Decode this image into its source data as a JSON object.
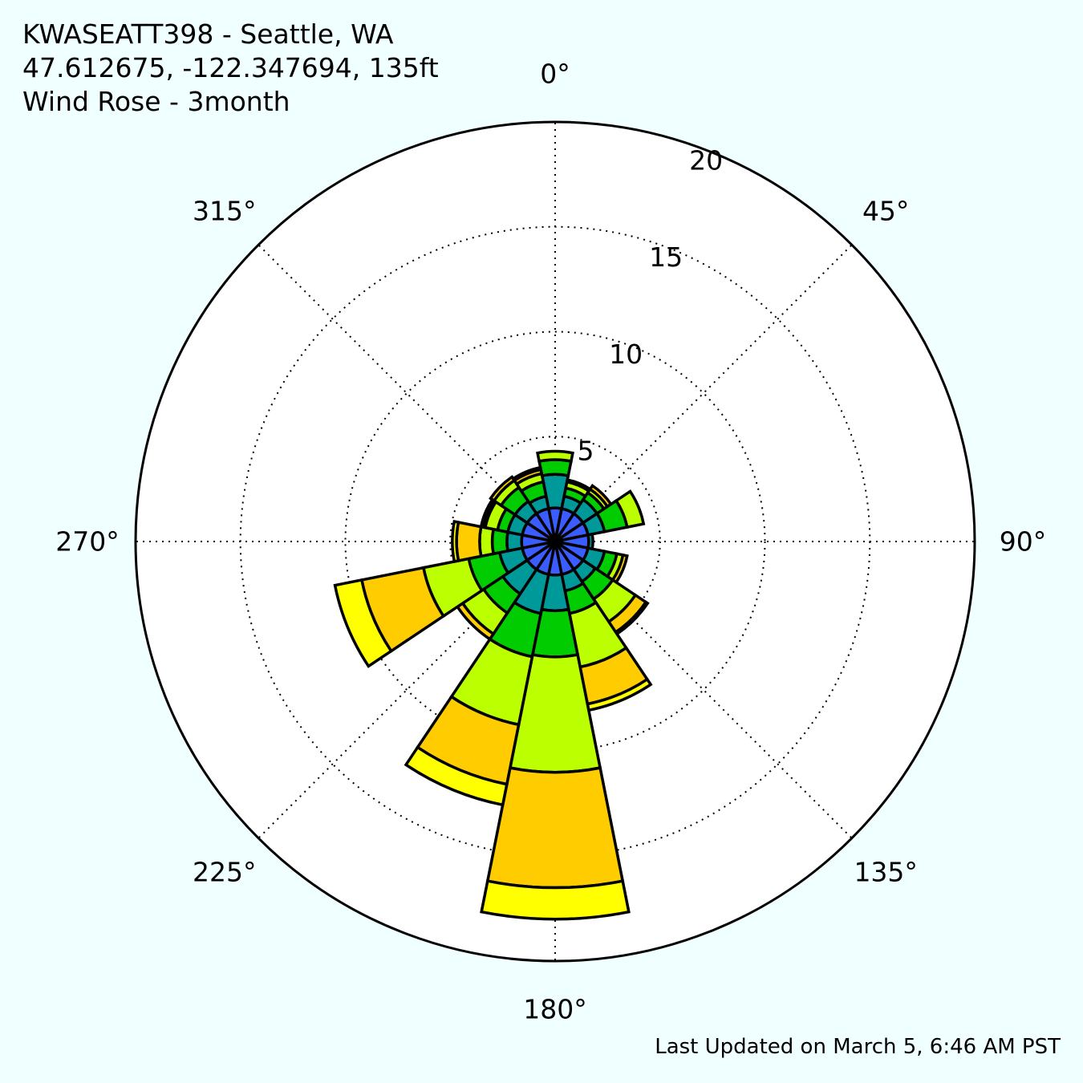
{
  "header": {
    "station": "KWASEATT398 - Seattle, WA",
    "coords": "47.612675, -122.347694, 135ft",
    "chart_name": "Wind Rose - 3month"
  },
  "footer": {
    "updated": "Last Updated on March 5, 6:46 AM PST"
  },
  "chart_data": {
    "type": "windrose",
    "r_max": 20,
    "r_ticks": [
      5,
      10,
      15,
      20
    ],
    "r_tick_labels": [
      "5",
      "10",
      "15",
      "20"
    ],
    "angle_ticks": [
      0,
      45,
      90,
      135,
      180,
      225,
      270,
      315
    ],
    "angle_tick_labels": [
      "0°",
      "45°",
      "90°",
      "135°",
      "180°",
      "225°",
      "270°",
      "315°"
    ],
    "grid": true,
    "sector_width_deg": 22.5,
    "bin_colors": [
      "#3b5cff",
      "#009999",
      "#00cc00",
      "#bbff00",
      "#ffcc00",
      "#ffff00",
      "#ff9900",
      "#000000"
    ],
    "directions": [
      0,
      22.5,
      45,
      67.5,
      90,
      112.5,
      135,
      157.5,
      180,
      202.5,
      225,
      247.5,
      270,
      292.5,
      315,
      337.5
    ],
    "cumulative": [
      [
        1.6,
        3.2,
        3.9,
        4.3
      ],
      [
        1.6,
        2.2,
        2.6,
        2.9,
        3.0
      ],
      [
        1.6,
        2.4,
        2.8,
        3.0,
        3.2
      ],
      [
        1.6,
        2.4,
        3.5,
        4.3
      ],
      [
        1.6,
        1.8
      ],
      [
        1.6,
        2.4,
        3.0,
        3.3,
        3.5
      ],
      [
        1.6,
        2.3,
        3.3,
        4.6,
        5.2,
        5.3
      ],
      [
        1.6,
        2.4,
        3.5,
        6.1,
        7.9,
        8.2
      ],
      [
        1.6,
        3.3,
        5.5,
        11.0,
        16.5,
        18.0
      ],
      [
        1.6,
        3.5,
        5.6,
        8.9,
        11.8,
        12.8
      ],
      [
        1.6,
        3.0,
        4.1,
        5.3,
        5.6
      ],
      [
        1.6,
        2.7,
        4.2,
        6.4,
        9.4,
        10.7
      ],
      [
        1.6,
        2.3,
        3.0,
        3.6,
        4.7,
        4.9
      ],
      [
        1.6,
        2.3,
        2.8,
        3.4,
        3.5,
        3.6
      ],
      [
        1.6,
        2.3,
        3.1,
        3.5,
        3.7
      ],
      [
        1.6,
        2.2,
        2.9,
        3.3,
        3.5,
        3.6
      ]
    ]
  }
}
